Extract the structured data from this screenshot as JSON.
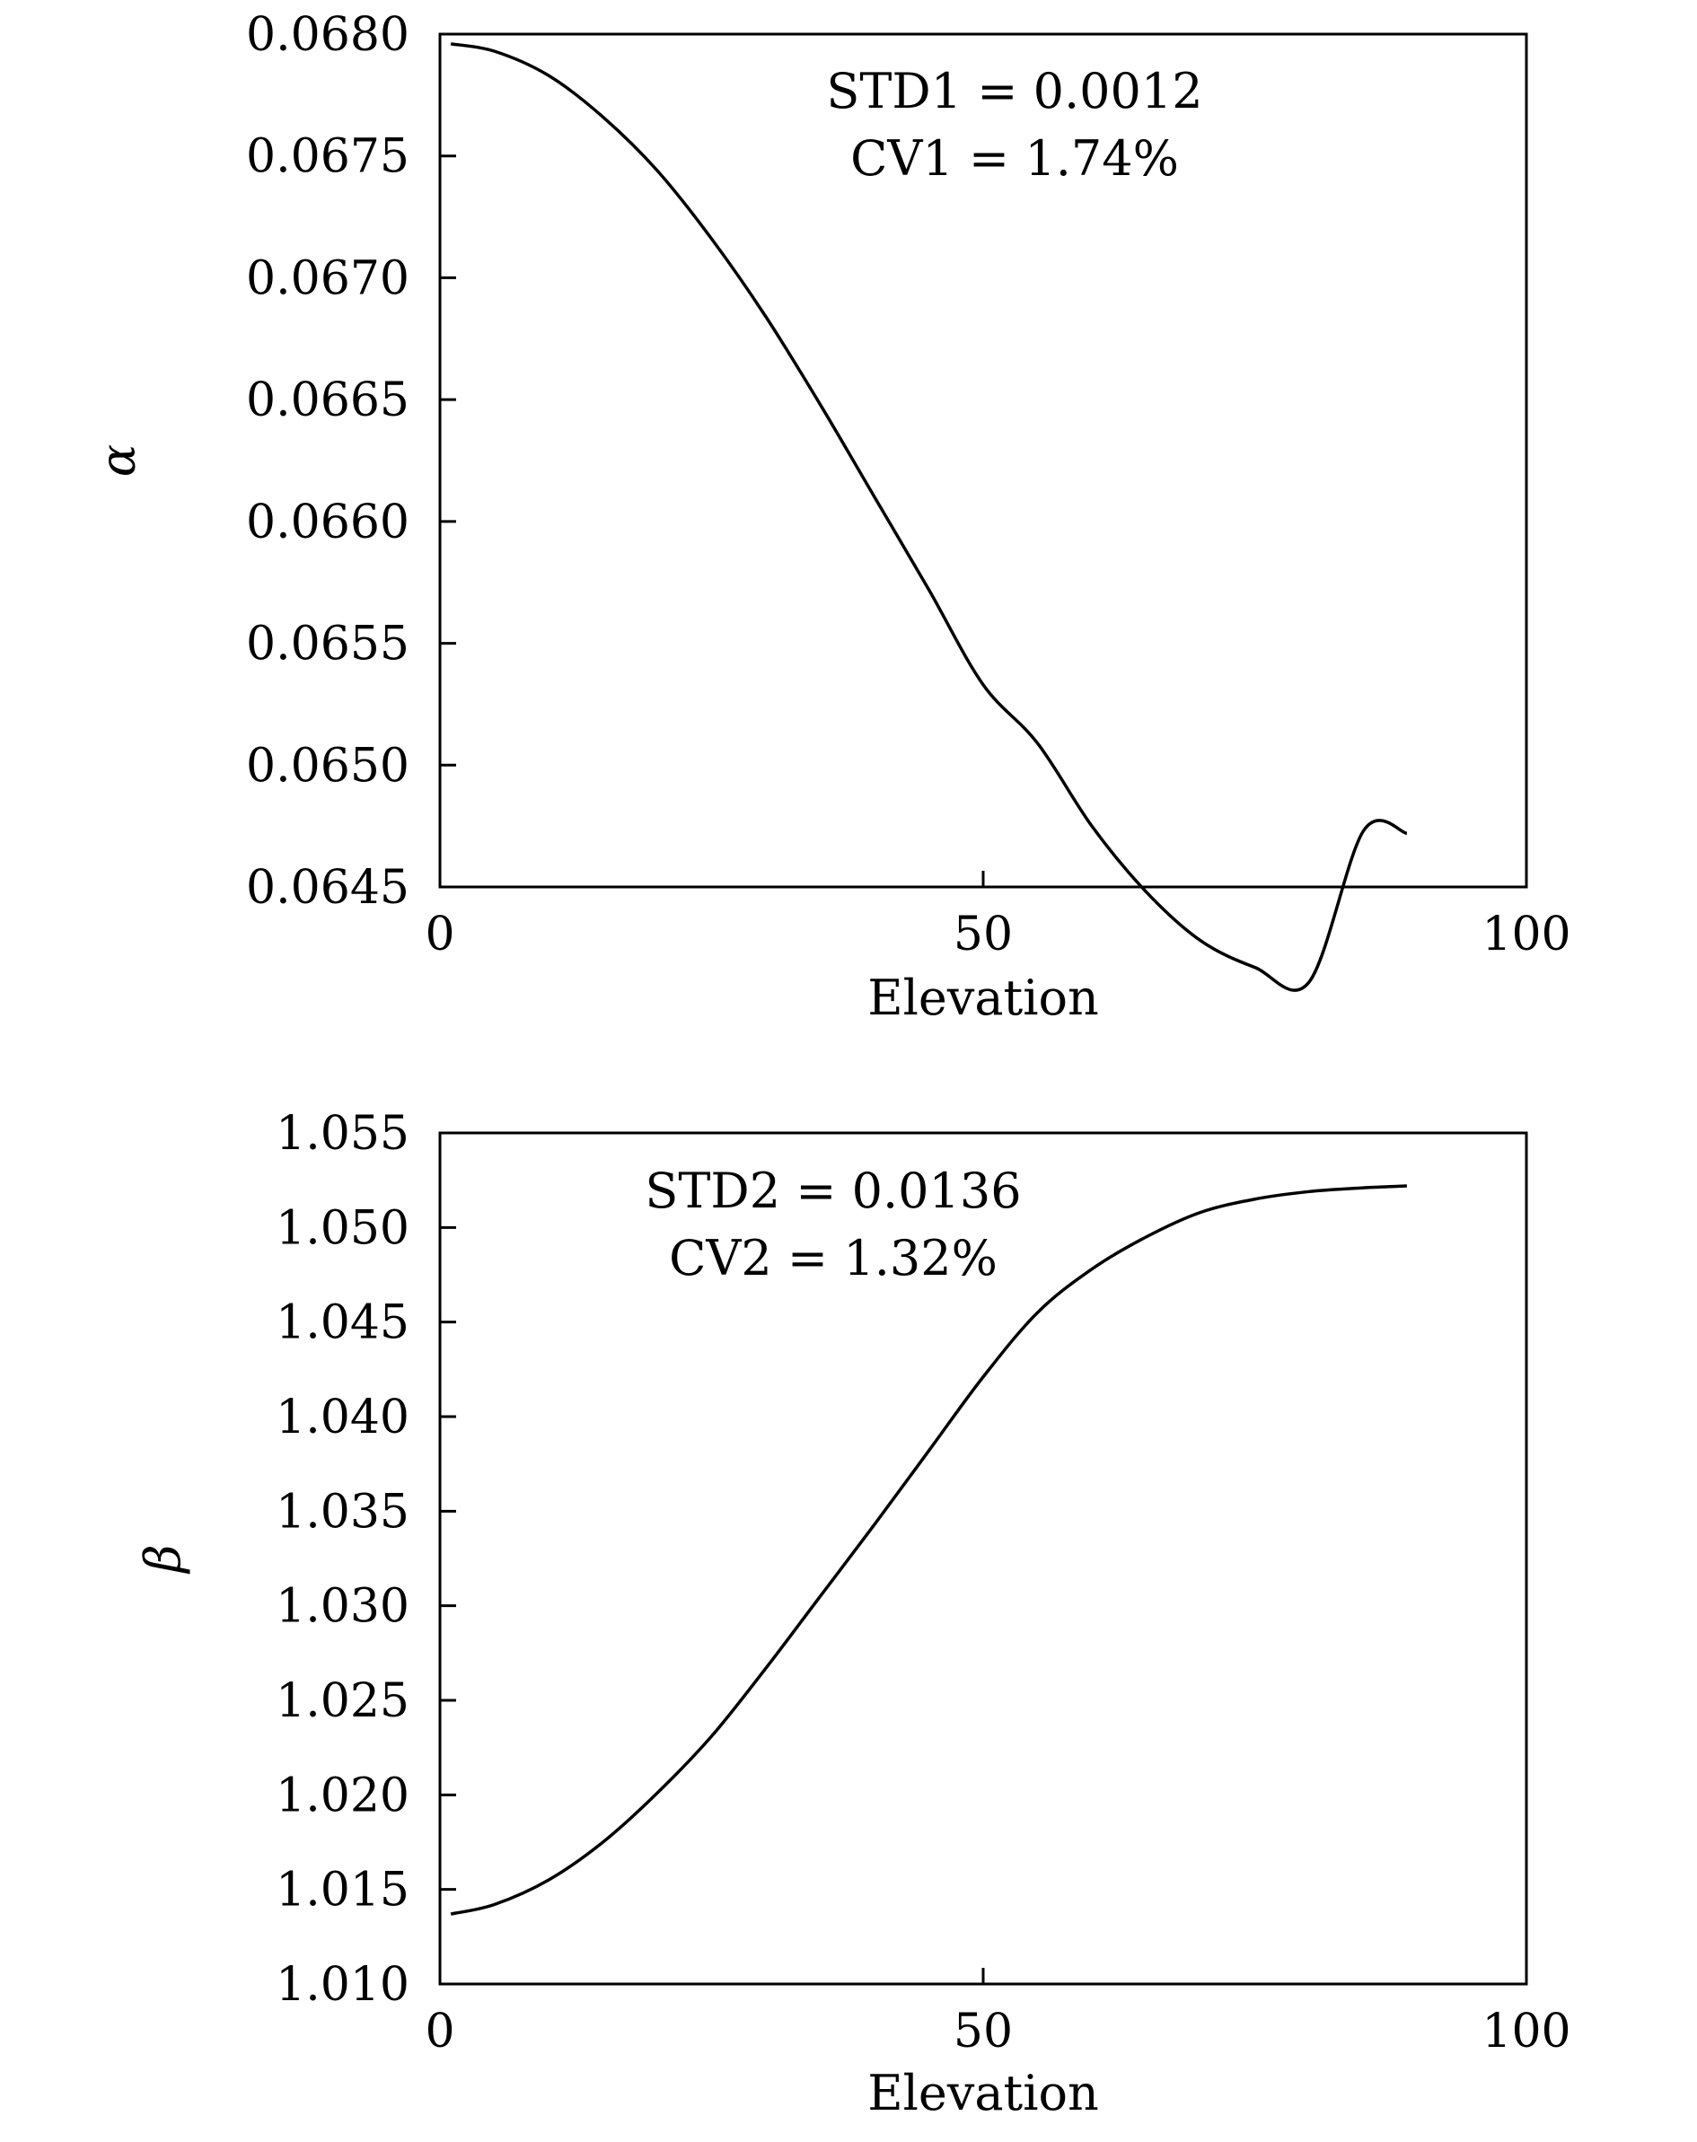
{
  "chart_data": [
    {
      "type": "line",
      "xlabel": "Elevation",
      "ylabel": "α",
      "xlim": [
        0,
        100
      ],
      "ylim": [
        0.0645,
        0.068
      ],
      "x_ticks": [
        "0",
        "50",
        "100"
      ],
      "y_ticks": [
        "0.0645",
        "0.0650",
        "0.0655",
        "0.0660",
        "0.0665",
        "0.0670",
        "0.0675",
        "0.0680"
      ],
      "annotations": [
        "STD1 = 0.0012",
        "CV1 = 1.74%"
      ],
      "grid": false,
      "series": [
        {
          "x": [
            1,
            5,
            10,
            15,
            20,
            25,
            30,
            35,
            40,
            45,
            50,
            55,
            60,
            65,
            70,
            75,
            80,
            85,
            89
          ],
          "y": [
            0.06796,
            0.06793,
            0.06783,
            0.06766,
            0.06744,
            0.06716,
            0.06684,
            0.06648,
            0.0661,
            0.06572,
            0.06533,
            0.06509,
            0.06475,
            0.06448,
            0.06428,
            0.06417,
            0.06411,
            0.06473,
            0.06472
          ]
        }
      ]
    },
    {
      "type": "line",
      "xlabel": "Elevation",
      "ylabel": "β",
      "xlim": [
        0,
        100
      ],
      "ylim": [
        1.01,
        1.055
      ],
      "x_ticks": [
        "0",
        "50",
        "100"
      ],
      "y_ticks": [
        "1.010",
        "1.015",
        "1.020",
        "1.025",
        "1.030",
        "1.035",
        "1.040",
        "1.045",
        "1.050",
        "1.055"
      ],
      "annotations": [
        "STD2 = 0.0136",
        "CV2 = 1.32%"
      ],
      "grid": false,
      "series": [
        {
          "x": [
            1,
            5,
            10,
            15,
            20,
            25,
            30,
            35,
            40,
            45,
            50,
            55,
            60,
            65,
            70,
            75,
            80,
            85,
            89
          ],
          "y": [
            1.0137,
            1.0142,
            1.0155,
            1.0175,
            1.0201,
            1.0231,
            1.0267,
            1.0305,
            1.0343,
            1.0382,
            1.0421,
            1.0455,
            1.0478,
            1.0495,
            1.0508,
            1.0515,
            1.0519,
            1.0521,
            1.0522
          ]
        }
      ]
    }
  ]
}
